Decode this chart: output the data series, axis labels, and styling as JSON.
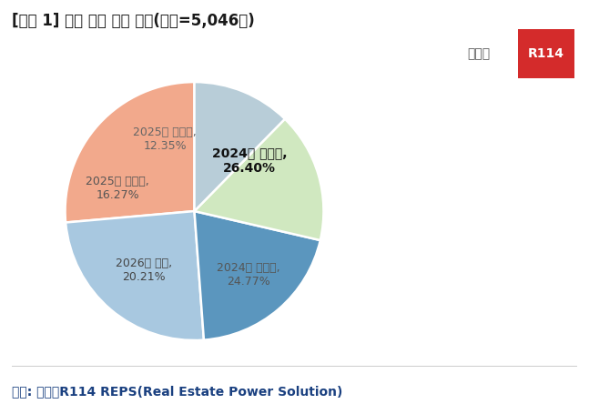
{
  "title": "[그림 1] 주택 매입 적정 시기(응답=5,046명)",
  "source": "자료: 부동산R114 REPS(Real Estate Power Solution)",
  "slices": [
    {
      "label": "2024년 상반기,\n26.40%",
      "value": 26.4,
      "color": "#F2A98C",
      "text_color": "#111111",
      "bold": true
    },
    {
      "label": "2024년 하반기,\n24.77%",
      "value": 24.77,
      "color": "#A8C8E0",
      "text_color": "#555555",
      "bold": false
    },
    {
      "label": "2026년 이후,\n20.21%",
      "value": 20.21,
      "color": "#5B96BE",
      "text_color": "#444444",
      "bold": false
    },
    {
      "label": "2025년 상반기,\n16.27%",
      "value": 16.27,
      "color": "#D0E8C0",
      "text_color": "#555555",
      "bold": false
    },
    {
      "label": "2025년 하반기,\n12.35%",
      "value": 12.35,
      "color": "#B8CDD8",
      "text_color": "#666666",
      "bold": false
    }
  ],
  "startangle": 90,
  "logo_text1": "부동산",
  "logo_text2": "R114",
  "background_color": "#FFFFFF",
  "title_fontsize": 12,
  "source_fontsize": 10,
  "label_fontsizes": [
    10,
    9,
    9,
    9,
    9
  ],
  "label_distances": [
    0.58,
    0.65,
    0.6,
    0.62,
    0.6
  ]
}
